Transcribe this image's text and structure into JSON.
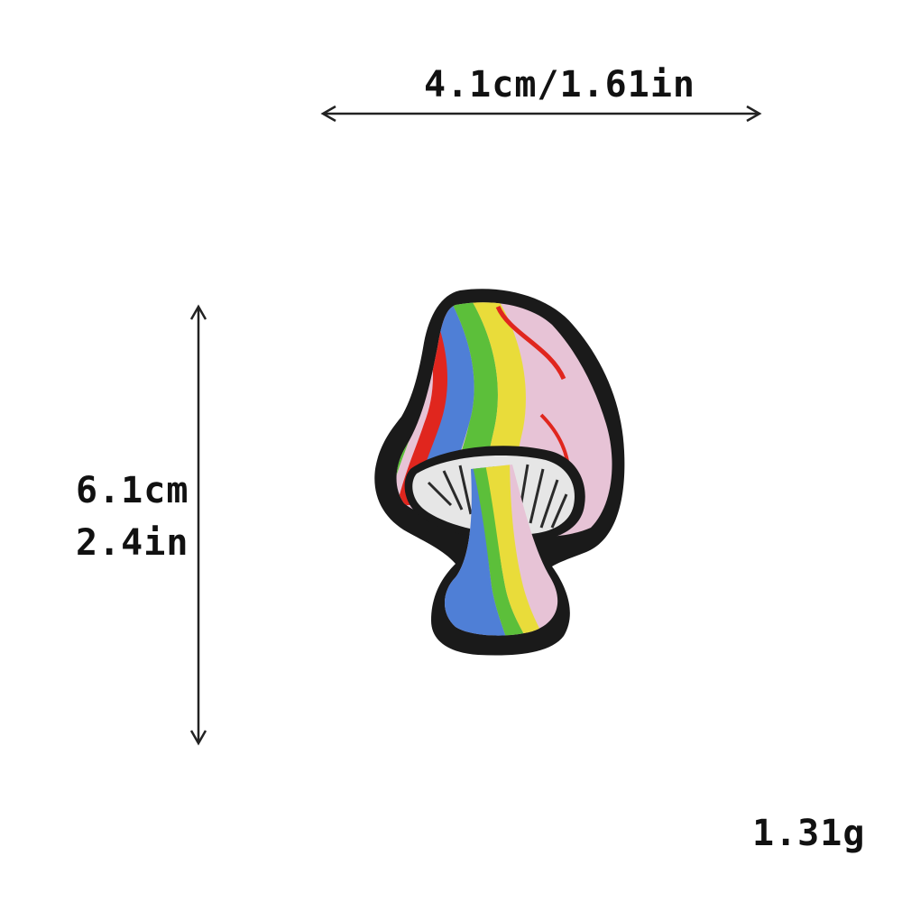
{
  "dimensions": {
    "width_text": "4.1cm/1.61in",
    "height_cm_text": "6.1cm",
    "height_in_text": "2.4in"
  },
  "weight_text": "1.31g",
  "product": {
    "icon": "rainbow-mushroom-patch-icon",
    "colors": {
      "outline": "#1a1a1a",
      "red": "#e0261e",
      "yellow": "#e9dc3a",
      "green": "#5cbf3a",
      "blue": "#4f7fd6",
      "pink": "#e7c3d6",
      "gills": "#e6e6e6"
    }
  }
}
